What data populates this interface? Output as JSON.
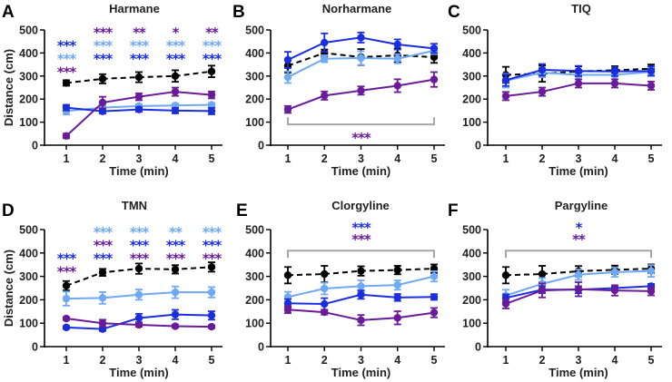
{
  "figure": {
    "ylabel": "Distance (cm)",
    "xlabel": "Time (min)"
  },
  "colors": {
    "control": "#000000",
    "purple": "#6a1b9a",
    "lightblue": "#6fa8f5",
    "blue": "#1a2ee0",
    "bracket": "#a6a6a6"
  },
  "chart_data": [
    {
      "type": "line",
      "letter": "A",
      "title": "Harmane",
      "xlabel": "Time (min)",
      "ylabel": "Distance (cm)",
      "x": [
        1,
        2,
        3,
        4,
        5
      ],
      "xticks": [
        "1",
        "2",
        "3",
        "4",
        "5"
      ],
      "yticks": [
        "0",
        "100",
        "200",
        "300",
        "400",
        "500"
      ],
      "ylim": [
        0,
        500
      ],
      "series": [
        {
          "name": "control",
          "color": "control",
          "dashed": true,
          "values": [
            270,
            288,
            295,
            300,
            320
          ],
          "err": [
            12,
            20,
            22,
            25,
            25
          ]
        },
        {
          "name": "lightblue",
          "color": "lightblue",
          "dashed": false,
          "values": [
            148,
            163,
            170,
            172,
            175
          ],
          "err": [
            15,
            8,
            8,
            8,
            8
          ]
        },
        {
          "name": "blue",
          "color": "blue",
          "dashed": false,
          "values": [
            163,
            147,
            155,
            150,
            148
          ],
          "err": [
            12,
            10,
            10,
            12,
            14
          ]
        },
        {
          "name": "purple",
          "color": "purple",
          "dashed": false,
          "values": [
            40,
            185,
            210,
            232,
            218
          ],
          "err": [
            10,
            25,
            15,
            18,
            15
          ]
        }
      ],
      "annotations": [
        {
          "x": 1,
          "rows": [
            {
              "text": "***",
              "color": "blue"
            },
            {
              "text": "***",
              "color": "lightblue"
            },
            {
              "text": "***",
              "color": "purple"
            }
          ],
          "offset": 1
        },
        {
          "x": 2,
          "rows": [
            {
              "text": "***",
              "color": "purple"
            },
            {
              "text": "***",
              "color": "lightblue"
            },
            {
              "text": "***",
              "color": "blue"
            }
          ],
          "offset": 0
        },
        {
          "x": 3,
          "rows": [
            {
              "text": "**",
              "color": "purple"
            },
            {
              "text": "***",
              "color": "lightblue"
            },
            {
              "text": "***",
              "color": "blue"
            }
          ],
          "offset": 0
        },
        {
          "x": 4,
          "rows": [
            {
              "text": "*",
              "color": "purple"
            },
            {
              "text": "***",
              "color": "lightblue"
            },
            {
              "text": "***",
              "color": "blue"
            }
          ],
          "offset": 0
        },
        {
          "x": 5,
          "rows": [
            {
              "text": "**",
              "color": "purple"
            },
            {
              "text": "***",
              "color": "lightblue"
            },
            {
              "text": "***",
              "color": "blue"
            }
          ],
          "offset": 0
        }
      ],
      "bracket": null
    },
    {
      "type": "line",
      "letter": "B",
      "title": "Norharmane",
      "xlabel": "Time (min)",
      "ylabel": "",
      "x": [
        1,
        2,
        3,
        4,
        5
      ],
      "xticks": [
        "1",
        "2",
        "3",
        "4",
        "5"
      ],
      "yticks": [
        "0",
        "100",
        "200",
        "300",
        "400",
        "500"
      ],
      "ylim": [
        0,
        500
      ],
      "series": [
        {
          "name": "control",
          "color": "control",
          "dashed": true,
          "values": [
            345,
            400,
            382,
            390,
            382
          ],
          "err": [
            30,
            15,
            35,
            30,
            25
          ]
        },
        {
          "name": "lightblue",
          "color": "lightblue",
          "dashed": false,
          "values": [
            295,
            375,
            378,
            375,
            410
          ],
          "err": [
            25,
            15,
            30,
            20,
            15
          ]
        },
        {
          "name": "blue",
          "color": "blue",
          "dashed": false,
          "values": [
            370,
            445,
            467,
            437,
            420
          ],
          "err": [
            35,
            40,
            22,
            22,
            20
          ]
        },
        {
          "name": "purple",
          "color": "purple",
          "dashed": false,
          "values": [
            155,
            215,
            237,
            258,
            285
          ],
          "err": [
            15,
            18,
            18,
            28,
            32
          ]
        }
      ],
      "annotations": [],
      "bracket": {
        "from": 1,
        "to": 5,
        "y": 90,
        "position": "below",
        "stars": [
          {
            "text": "***",
            "color": "purple"
          }
        ]
      }
    },
    {
      "type": "line",
      "letter": "C",
      "title": "TIQ",
      "xlabel": "Time (min)",
      "ylabel": "",
      "x": [
        1,
        2,
        3,
        4,
        5
      ],
      "xticks": [
        "1",
        "2",
        "3",
        "4",
        "5"
      ],
      "yticks": [
        "0",
        "100",
        "200",
        "300",
        "400",
        "500"
      ],
      "ylim": [
        0,
        500
      ],
      "series": [
        {
          "name": "control",
          "color": "control",
          "dashed": true,
          "values": [
            305,
            310,
            320,
            325,
            332
          ],
          "err": [
            35,
            35,
            22,
            18,
            18
          ]
        },
        {
          "name": "lightblue",
          "color": "lightblue",
          "dashed": false,
          "values": [
            280,
            315,
            305,
            305,
            318
          ],
          "err": [
            30,
            20,
            20,
            20,
            18
          ]
        },
        {
          "name": "blue",
          "color": "blue",
          "dashed": false,
          "values": [
            282,
            327,
            322,
            320,
            322
          ],
          "err": [
            25,
            25,
            22,
            20,
            20
          ]
        },
        {
          "name": "purple",
          "color": "purple",
          "dashed": false,
          "values": [
            213,
            232,
            268,
            268,
            258
          ],
          "err": [
            18,
            18,
            18,
            18,
            18
          ]
        }
      ],
      "annotations": [],
      "bracket": null
    },
    {
      "type": "line",
      "letter": "D",
      "title": "TMN",
      "xlabel": "Time (min)",
      "ylabel": "Distance (cm)",
      "x": [
        1,
        2,
        3,
        4,
        5
      ],
      "xticks": [
        "1",
        "2",
        "3",
        "4",
        "5"
      ],
      "yticks": [
        "0",
        "100",
        "200",
        "300",
        "400",
        "500"
      ],
      "ylim": [
        0,
        500
      ],
      "series": [
        {
          "name": "control",
          "color": "control",
          "dashed": true,
          "values": [
            260,
            317,
            333,
            330,
            340
          ],
          "err": [
            20,
            15,
            22,
            18,
            20
          ]
        },
        {
          "name": "lightblue",
          "color": "lightblue",
          "dashed": false,
          "values": [
            205,
            208,
            222,
            232,
            232
          ],
          "err": [
            30,
            25,
            22,
            25,
            22
          ]
        },
        {
          "name": "blue",
          "color": "blue",
          "dashed": false,
          "values": [
            82,
            75,
            122,
            137,
            133
          ],
          "err": [
            6,
            8,
            18,
            20,
            18
          ]
        },
        {
          "name": "purple",
          "color": "purple",
          "dashed": false,
          "values": [
            120,
            100,
            93,
            87,
            85
          ],
          "err": [
            6,
            15,
            8,
            6,
            6
          ]
        }
      ],
      "annotations": [
        {
          "x": 1,
          "rows": [
            {
              "text": "***",
              "color": "blue"
            },
            {
              "text": "***",
              "color": "purple"
            }
          ],
          "offset": 2
        },
        {
          "x": 2,
          "rows": [
            {
              "text": "***",
              "color": "lightblue"
            },
            {
              "text": "***",
              "color": "purple"
            },
            {
              "text": "***",
              "color": "blue"
            }
          ],
          "offset": 0
        },
        {
          "x": 3,
          "rows": [
            {
              "text": "***",
              "color": "lightblue"
            },
            {
              "text": "***",
              "color": "blue"
            },
            {
              "text": "***",
              "color": "purple"
            }
          ],
          "offset": 0
        },
        {
          "x": 4,
          "rows": [
            {
              "text": "**",
              "color": "lightblue"
            },
            {
              "text": "***",
              "color": "blue"
            },
            {
              "text": "***",
              "color": "purple"
            }
          ],
          "offset": 0
        },
        {
          "x": 5,
          "rows": [
            {
              "text": "***",
              "color": "lightblue"
            },
            {
              "text": "***",
              "color": "blue"
            },
            {
              "text": "***",
              "color": "purple"
            }
          ],
          "offset": 0
        }
      ],
      "bracket": null
    },
    {
      "type": "line",
      "letter": "E",
      "title": "Clorgyline",
      "xlabel": "Time (min)",
      "ylabel": "",
      "x": [
        1,
        2,
        3,
        4,
        5
      ],
      "xticks": [
        "1",
        "2",
        "3",
        "4",
        "5"
      ],
      "yticks": [
        "0",
        "100",
        "200",
        "300",
        "400",
        "500"
      ],
      "ylim": [
        0,
        500
      ],
      "series": [
        {
          "name": "control",
          "color": "control",
          "dashed": true,
          "values": [
            305,
            310,
            323,
            327,
            333
          ],
          "err": [
            35,
            35,
            20,
            18,
            18
          ]
        },
        {
          "name": "lightblue",
          "color": "lightblue",
          "dashed": false,
          "values": [
            212,
            248,
            258,
            263,
            300
          ],
          "err": [
            22,
            25,
            25,
            20,
            22
          ]
        },
        {
          "name": "blue",
          "color": "blue",
          "dashed": false,
          "values": [
            185,
            182,
            222,
            210,
            212
          ],
          "err": [
            18,
            25,
            18,
            15,
            12
          ]
        },
        {
          "name": "purple",
          "color": "purple",
          "dashed": false,
          "values": [
            158,
            147,
            113,
            123,
            145
          ],
          "err": [
            15,
            10,
            22,
            28,
            20
          ]
        }
      ],
      "annotations": [],
      "bracket": {
        "from": 1,
        "to": 5,
        "y": 410,
        "position": "above",
        "stars": [
          {
            "text": "***",
            "color": "blue"
          },
          {
            "text": "***",
            "color": "purple"
          }
        ]
      }
    },
    {
      "type": "line",
      "letter": "F",
      "title": "Pargyline",
      "xlabel": "Time (min)",
      "ylabel": "",
      "x": [
        1,
        2,
        3,
        4,
        5
      ],
      "xticks": [
        "1",
        "2",
        "3",
        "4",
        "5"
      ],
      "yticks": [
        "0",
        "100",
        "200",
        "300",
        "400",
        "500"
      ],
      "ylim": [
        0,
        500
      ],
      "series": [
        {
          "name": "control",
          "color": "control",
          "dashed": true,
          "values": [
            305,
            310,
            322,
            328,
            333
          ],
          "err": [
            35,
            35,
            22,
            18,
            18
          ]
        },
        {
          "name": "lightblue",
          "color": "lightblue",
          "dashed": false,
          "values": [
            218,
            268,
            307,
            318,
            323
          ],
          "err": [
            25,
            25,
            22,
            20,
            25
          ]
        },
        {
          "name": "blue",
          "color": "blue",
          "dashed": false,
          "values": [
            208,
            243,
            243,
            250,
            258
          ],
          "err": [
            15,
            15,
            15,
            12,
            10
          ]
        },
        {
          "name": "purple",
          "color": "purple",
          "dashed": false,
          "values": [
            183,
            240,
            245,
            240,
            237
          ],
          "err": [
            20,
            30,
            30,
            22,
            18
          ]
        }
      ],
      "annotations": [],
      "bracket": {
        "from": 1,
        "to": 5,
        "y": 410,
        "position": "above",
        "stars": [
          {
            "text": "*",
            "color": "blue"
          },
          {
            "text": "**",
            "color": "purple"
          }
        ]
      }
    }
  ]
}
